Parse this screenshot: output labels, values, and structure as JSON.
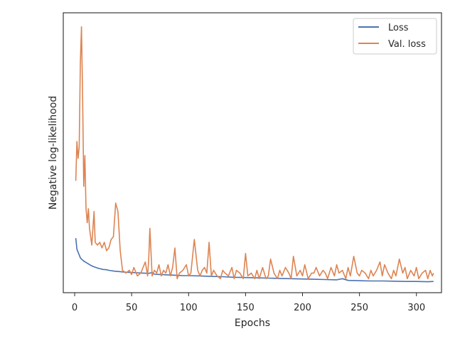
{
  "chart_data": {
    "type": "line",
    "title": "",
    "xlabel": "Epochs",
    "ylabel": "Negative log-likelihood",
    "xlim": [
      -10,
      322
    ],
    "ylim": [
      0,
      1
    ],
    "x_ticks": [
      0,
      50,
      100,
      150,
      200,
      250,
      300
    ],
    "y_tick_labels_shown": false,
    "grid": false,
    "legend_position": "top-right",
    "colors": {
      "Loss": "#4c72b0",
      "Val. loss": "#dd8452"
    },
    "series": [
      {
        "name": "Loss",
        "x": [
          1,
          2,
          3,
          4,
          5,
          6,
          8,
          10,
          12,
          14,
          16,
          18,
          20,
          22,
          25,
          28,
          30,
          35,
          40,
          45,
          50,
          55,
          60,
          65,
          68,
          70,
          75,
          80,
          85,
          90,
          95,
          100,
          110,
          120,
          130,
          140,
          150,
          160,
          170,
          180,
          190,
          200,
          210,
          220,
          230,
          235,
          240,
          250,
          260,
          270,
          280,
          290,
          300,
          310,
          315
        ],
        "values": [
          0.195,
          0.155,
          0.145,
          0.135,
          0.125,
          0.12,
          0.113,
          0.108,
          0.103,
          0.098,
          0.094,
          0.091,
          0.088,
          0.086,
          0.083,
          0.082,
          0.08,
          0.077,
          0.075,
          0.073,
          0.072,
          0.071,
          0.07,
          0.069,
          0.072,
          0.066,
          0.065,
          0.064,
          0.063,
          0.062,
          0.061,
          0.061,
          0.06,
          0.058,
          0.057,
          0.055,
          0.054,
          0.053,
          0.052,
          0.051,
          0.05,
          0.049,
          0.048,
          0.047,
          0.046,
          0.05,
          0.044,
          0.043,
          0.042,
          0.042,
          0.041,
          0.04,
          0.04,
          0.039,
          0.04
        ]
      },
      {
        "name": "Val. loss",
        "x": [
          1,
          2,
          3,
          4,
          5,
          6,
          7,
          8,
          9,
          10,
          11,
          12,
          13,
          15,
          17,
          18,
          20,
          22,
          24,
          26,
          28,
          30,
          32,
          34,
          36,
          38,
          40,
          42,
          45,
          48,
          50,
          52,
          55,
          58,
          60,
          62,
          64,
          65,
          66,
          68,
          70,
          72,
          74,
          76,
          78,
          80,
          82,
          84,
          86,
          88,
          90,
          92,
          95,
          98,
          100,
          102,
          105,
          108,
          110,
          112,
          114,
          116,
          118,
          120,
          122,
          125,
          128,
          130,
          132,
          135,
          138,
          140,
          142,
          145,
          148,
          150,
          152,
          155,
          158,
          160,
          162,
          165,
          168,
          170,
          172,
          175,
          178,
          180,
          182,
          185,
          188,
          190,
          192,
          195,
          198,
          200,
          202,
          205,
          208,
          210,
          212,
          215,
          218,
          220,
          222,
          225,
          228,
          230,
          232,
          235,
          238,
          240,
          242,
          245,
          248,
          250,
          252,
          255,
          258,
          260,
          262,
          265,
          268,
          270,
          272,
          275,
          278,
          280,
          282,
          285,
          288,
          290,
          292,
          295,
          298,
          300,
          302,
          305,
          308,
          310,
          312,
          314,
          315
        ],
        "values": [
          0.4,
          0.54,
          0.48,
          0.52,
          0.82,
          0.95,
          0.7,
          0.38,
          0.49,
          0.3,
          0.25,
          0.3,
          0.23,
          0.17,
          0.29,
          0.18,
          0.17,
          0.18,
          0.16,
          0.18,
          0.15,
          0.16,
          0.19,
          0.2,
          0.32,
          0.29,
          0.15,
          0.08,
          0.07,
          0.08,
          0.065,
          0.09,
          0.06,
          0.07,
          0.09,
          0.11,
          0.06,
          0.12,
          0.23,
          0.06,
          0.08,
          0.07,
          0.1,
          0.06,
          0.08,
          0.07,
          0.1,
          0.06,
          0.09,
          0.16,
          0.05,
          0.07,
          0.08,
          0.1,
          0.06,
          0.07,
          0.19,
          0.08,
          0.06,
          0.08,
          0.09,
          0.07,
          0.18,
          0.06,
          0.08,
          0.06,
          0.05,
          0.08,
          0.07,
          0.06,
          0.09,
          0.05,
          0.08,
          0.07,
          0.05,
          0.14,
          0.06,
          0.07,
          0.05,
          0.08,
          0.05,
          0.09,
          0.05,
          0.06,
          0.12,
          0.07,
          0.05,
          0.08,
          0.06,
          0.09,
          0.07,
          0.05,
          0.13,
          0.06,
          0.08,
          0.06,
          0.1,
          0.05,
          0.07,
          0.07,
          0.09,
          0.06,
          0.08,
          0.07,
          0.05,
          0.09,
          0.06,
          0.1,
          0.07,
          0.08,
          0.05,
          0.09,
          0.06,
          0.13,
          0.07,
          0.06,
          0.08,
          0.07,
          0.05,
          0.08,
          0.06,
          0.08,
          0.11,
          0.06,
          0.1,
          0.07,
          0.05,
          0.08,
          0.06,
          0.12,
          0.07,
          0.09,
          0.05,
          0.08,
          0.06,
          0.09,
          0.05,
          0.07,
          0.08,
          0.05,
          0.08,
          0.06,
          0.07
        ]
      }
    ]
  }
}
